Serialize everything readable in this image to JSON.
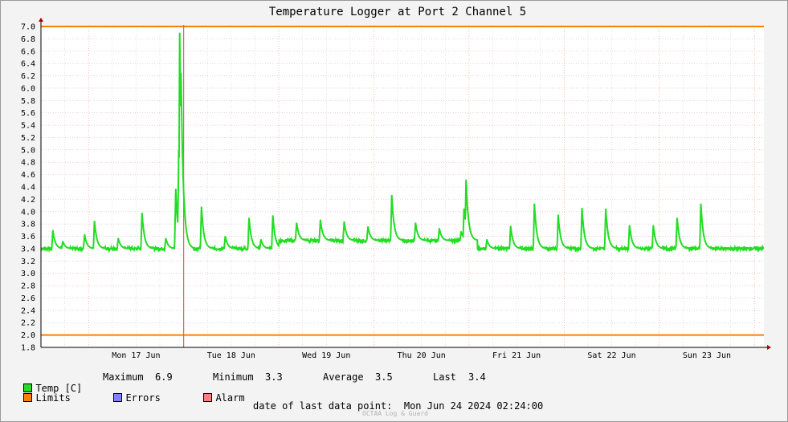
{
  "chart_data": {
    "type": "line",
    "title": "Temperature Logger at Port 2 Channel 5",
    "ylim": [
      1.8,
      7.0
    ],
    "y_ticks": [
      "1.8",
      "2.0",
      "2.2",
      "2.4",
      "2.6",
      "2.8",
      "3.0",
      "3.2",
      "3.4",
      "3.6",
      "3.8",
      "4.0",
      "4.2",
      "4.4",
      "4.6",
      "4.8",
      "5.0",
      "5.2",
      "5.4",
      "5.6",
      "5.8",
      "6.0",
      "6.2",
      "6.4",
      "6.6",
      "6.8",
      "7.0"
    ],
    "x_range_days": [
      "2024-06-16 12:00",
      "2024-06-24 02:24"
    ],
    "x_ticks": [
      "Mon 17 Jun",
      "Tue 18 Jun",
      "Wed 19 Jun",
      "Thu 20 Jun",
      "Fri 21 Jun",
      "Sat 22 Jun",
      "Sun 23 Jun"
    ],
    "grid": true,
    "limits": {
      "upper": 7.0,
      "lower": 2.0,
      "color": "#ff7f00"
    },
    "alarm_marker": {
      "x": "Tue 18 Jun 00:00",
      "color": "#e06060"
    },
    "series": [
      {
        "name": "Temp [C]",
        "color": "#22dd22",
        "baseline_segments": [
          {
            "from": "Sun 16 Jun 12:00",
            "to": "Tue 18 Jun 00:00",
            "value": 3.4
          },
          {
            "from": "Tue 18 Jun 00:00",
            "to": "Wed 19 Jun 00:00",
            "value": 3.4
          },
          {
            "from": "Wed 19 Jun 00:00",
            "to": "Fri 21 Jun 00:00",
            "value": 3.53
          },
          {
            "from": "Fri 21 Jun 00:00",
            "to": "Mon 24 Jun 02:24",
            "value": 3.4
          }
        ],
        "peaks": [
          {
            "x": "Sun 16 Jun 15:00",
            "y": 3.7
          },
          {
            "x": "Sun 16 Jun 17:30",
            "y": 3.52
          },
          {
            "x": "Sun 16 Jun 23:00",
            "y": 3.63
          },
          {
            "x": "Mon 17 Jun 01:30",
            "y": 3.85
          },
          {
            "x": "Mon 17 Jun 07:30",
            "y": 3.57
          },
          {
            "x": "Mon 17 Jun 13:30",
            "y": 3.98
          },
          {
            "x": "Mon 17 Jun 19:30",
            "y": 3.57
          },
          {
            "x": "Mon 17 Jun 22:00",
            "y": 4.37
          },
          {
            "x": "Mon 17 Jun 22:45",
            "y": 5.0
          },
          {
            "x": "Mon 17 Jun 23:00",
            "y": 6.9
          },
          {
            "x": "Mon 17 Jun 23:20",
            "y": 6.25
          },
          {
            "x": "Mon 17 Jun 23:40",
            "y": 4.8
          },
          {
            "x": "Tue 18 Jun 04:30",
            "y": 4.08
          },
          {
            "x": "Tue 18 Jun 10:30",
            "y": 3.6
          },
          {
            "x": "Tue 18 Jun 16:30",
            "y": 3.9
          },
          {
            "x": "Tue 18 Jun 19:30",
            "y": 3.55
          },
          {
            "x": "Tue 18 Jun 22:30",
            "y": 3.94
          },
          {
            "x": "Wed 19 Jun 04:30",
            "y": 3.82
          },
          {
            "x": "Wed 19 Jun 10:30",
            "y": 3.87
          },
          {
            "x": "Wed 19 Jun 16:30",
            "y": 3.84
          },
          {
            "x": "Wed 19 Jun 22:30",
            "y": 3.76
          },
          {
            "x": "Thu 20 Jun 04:30",
            "y": 4.27
          },
          {
            "x": "Thu 20 Jun 10:30",
            "y": 3.82
          },
          {
            "x": "Thu 20 Jun 16:30",
            "y": 3.73
          },
          {
            "x": "Thu 20 Jun 22:00",
            "y": 3.68
          },
          {
            "x": "Thu 20 Jun 22:45",
            "y": 4.05
          },
          {
            "x": "Thu 20 Jun 23:15",
            "y": 4.52
          },
          {
            "x": "Fri 21 Jun 04:30",
            "y": 3.55
          },
          {
            "x": "Fri 21 Jun 10:30",
            "y": 3.77
          },
          {
            "x": "Fri 21 Jun 16:30",
            "y": 4.13
          },
          {
            "x": "Fri 21 Jun 22:30",
            "y": 3.95
          },
          {
            "x": "Sat 22 Jun 04:30",
            "y": 4.06
          },
          {
            "x": "Sat 22 Jun 10:30",
            "y": 4.05
          },
          {
            "x": "Sat 22 Jun 16:30",
            "y": 3.78
          },
          {
            "x": "Sat 22 Jun 22:30",
            "y": 3.78
          },
          {
            "x": "Sun 23 Jun 04:30",
            "y": 3.9
          },
          {
            "x": "Sun 23 Jun 10:30",
            "y": 4.13
          }
        ]
      }
    ]
  },
  "legend": {
    "temp_label": "Temp [C]",
    "limits_label": "Limits",
    "errors_label": "Errors",
    "alarm_label": "Alarm",
    "temp_color": "#22dd22",
    "limits_color": "#ff7f00",
    "errors_color": "#7f7fff",
    "alarm_color": "#ff7f7f"
  },
  "stats": {
    "maximum_label": "Maximum",
    "maximum_value": "6.9",
    "minimum_label": "Minimum",
    "minimum_value": "3.3",
    "average_label": "Average",
    "average_value": "3.5",
    "last_label": "Last",
    "last_value": "3.4"
  },
  "footer": {
    "date_text": "date of last data point:  Mon Jun 24 2024 02:24:00",
    "brand": "OCTAA Log & Guard"
  }
}
